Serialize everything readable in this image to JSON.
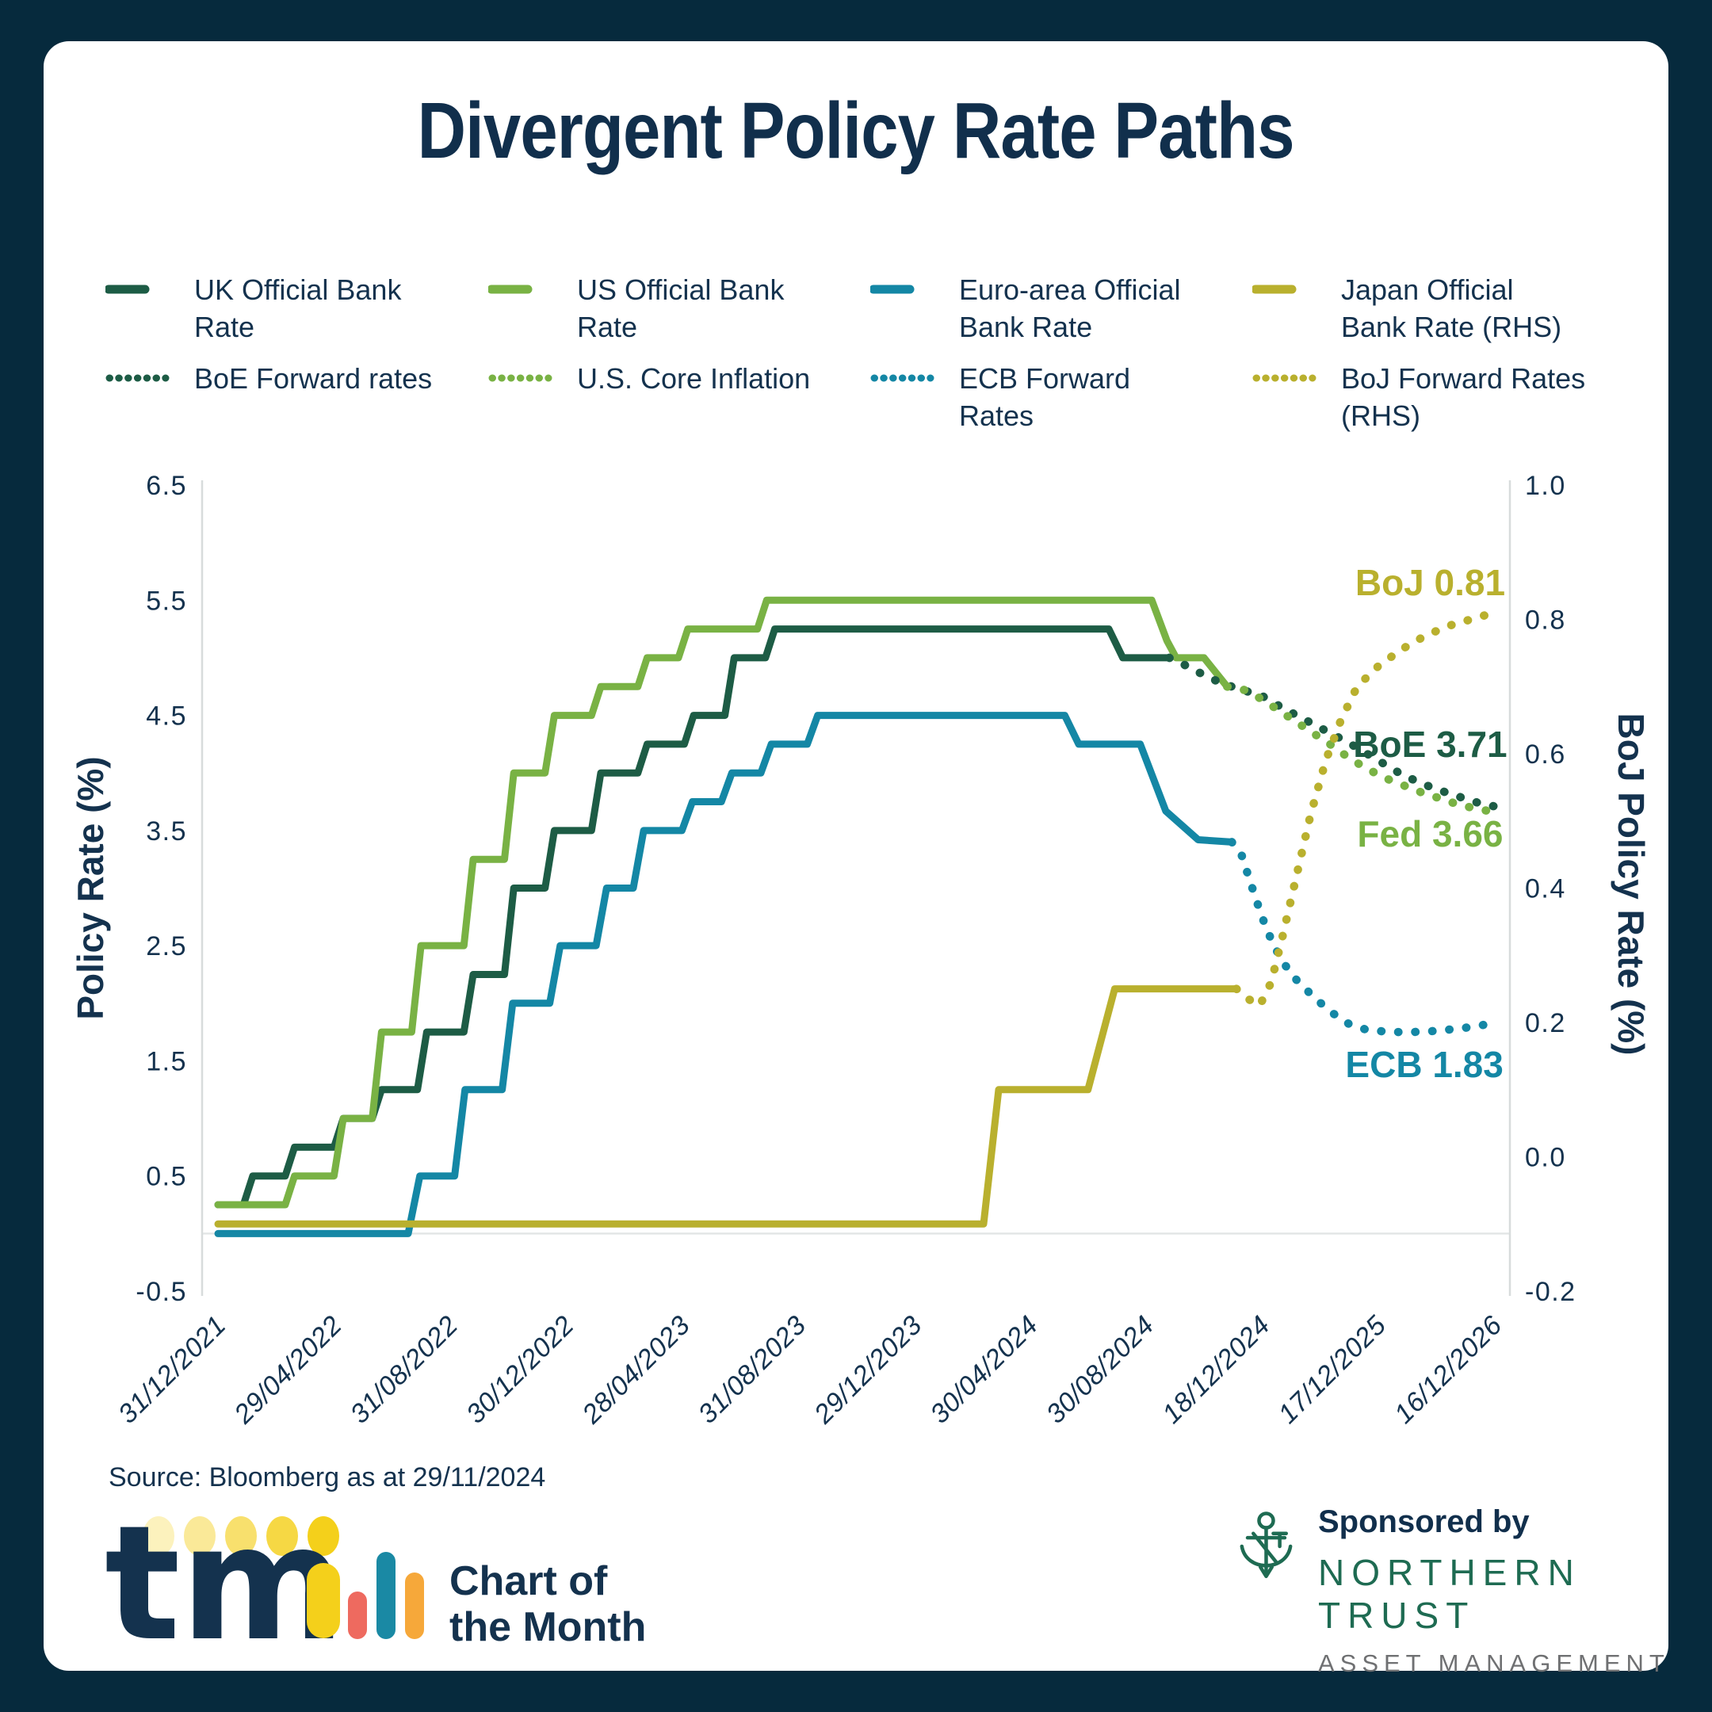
{
  "title": "Divergent Policy Rate Paths",
  "colors": {
    "background": "#062a3d",
    "card": "#ffffff",
    "text_navy": "#14324e",
    "uk_green": "#1d5c45",
    "us_green": "#79b244",
    "euro_teal": "#1487a5",
    "japan_olive": "#b9b02e",
    "nt_green": "#1e6b52",
    "nt_gray": "#6f7072",
    "axis_gray": "#d8dcdc"
  },
  "legend": {
    "items": [
      {
        "lines": [
          "UK Official Bank",
          "Rate"
        ],
        "color": "#1d5c45",
        "style": "solid"
      },
      {
        "lines": [
          "US Official Bank",
          "Rate"
        ],
        "color": "#79b244",
        "style": "solid"
      },
      {
        "lines": [
          "Euro-area Official",
          "Bank Rate"
        ],
        "color": "#1487a5",
        "style": "solid"
      },
      {
        "lines": [
          "Japan Official",
          "Bank Rate (RHS)"
        ],
        "color": "#b9b02e",
        "style": "solid"
      },
      {
        "lines": [
          "BoE Forward rates"
        ],
        "color": "#1d5c45",
        "style": "dotted"
      },
      {
        "lines": [
          "U.S. Core Inflation"
        ],
        "color": "#79b244",
        "style": "dotted"
      },
      {
        "lines": [
          "ECB Forward",
          "Rates"
        ],
        "color": "#1487a5",
        "style": "dotted"
      },
      {
        "lines": [
          "BoJ Forward Rates",
          "(RHS)"
        ],
        "color": "#b9b02e",
        "style": "dotted"
      }
    ]
  },
  "chart_data": {
    "type": "line",
    "title": "Divergent Policy Rate Paths",
    "x_tick_labels": [
      "31/12/2021",
      "29/04/2022",
      "31/08/2022",
      "30/12/2022",
      "28/04/2023",
      "31/08/2023",
      "29/12/2023",
      "30/04/2024",
      "30/08/2024",
      "18/12/2024",
      "17/12/2025",
      "16/12/2026"
    ],
    "y_left": {
      "label": "Policy Rate (%)",
      "min": -0.5,
      "max": 6.5,
      "ticks": [
        "6.5",
        "5.5",
        "4.5",
        "3.5",
        "2.5",
        "1.5",
        "0.5",
        "-0.5"
      ]
    },
    "y_right": {
      "label": "BoJ Policy Rate (%)",
      "min": -0.2,
      "max": 1.0,
      "ticks": [
        "1.0",
        "0.8",
        "0.6",
        "0.4",
        "0.2",
        "0.0",
        "-0.2"
      ]
    },
    "zero_gridline": 0,
    "series": [
      {
        "name": "UK Official Bank Rate",
        "color": "#1d5c45",
        "style": "solid",
        "axis": "left",
        "points": [
          [
            0,
            0.25
          ],
          [
            0.22,
            0.25
          ],
          [
            0.3,
            0.5
          ],
          [
            0.58,
            0.5
          ],
          [
            0.66,
            0.75
          ],
          [
            1.0,
            0.75
          ],
          [
            1.08,
            1.0
          ],
          [
            1.33,
            1.0
          ],
          [
            1.41,
            1.25
          ],
          [
            1.72,
            1.25
          ],
          [
            1.8,
            1.75
          ],
          [
            2.12,
            1.75
          ],
          [
            2.2,
            2.25
          ],
          [
            2.47,
            2.25
          ],
          [
            2.55,
            3.0
          ],
          [
            2.82,
            3.0
          ],
          [
            2.9,
            3.5
          ],
          [
            3.22,
            3.5
          ],
          [
            3.3,
            4.0
          ],
          [
            3.62,
            4.0
          ],
          [
            3.7,
            4.25
          ],
          [
            4.02,
            4.25
          ],
          [
            4.1,
            4.5
          ],
          [
            4.37,
            4.5
          ],
          [
            4.45,
            5.0
          ],
          [
            4.72,
            5.0
          ],
          [
            4.8,
            5.25
          ],
          [
            7.68,
            5.25
          ],
          [
            7.8,
            5.0
          ],
          [
            8.2,
            5.0
          ]
        ]
      },
      {
        "name": "US Official Bank Rate",
        "color": "#79b244",
        "style": "solid",
        "axis": "left",
        "points": [
          [
            0,
            0.25
          ],
          [
            0.58,
            0.25
          ],
          [
            0.66,
            0.5
          ],
          [
            1.0,
            0.5
          ],
          [
            1.08,
            1.0
          ],
          [
            1.33,
            1.0
          ],
          [
            1.41,
            1.75
          ],
          [
            1.67,
            1.75
          ],
          [
            1.75,
            2.5
          ],
          [
            2.12,
            2.5
          ],
          [
            2.2,
            3.25
          ],
          [
            2.47,
            3.25
          ],
          [
            2.55,
            4.0
          ],
          [
            2.82,
            4.0
          ],
          [
            2.9,
            4.5
          ],
          [
            3.22,
            4.5
          ],
          [
            3.3,
            4.75
          ],
          [
            3.62,
            4.75
          ],
          [
            3.7,
            5.0
          ],
          [
            3.97,
            5.0
          ],
          [
            4.05,
            5.25
          ],
          [
            4.65,
            5.25
          ],
          [
            4.73,
            5.5
          ],
          [
            8.05,
            5.5
          ],
          [
            8.18,
            5.15
          ],
          [
            8.26,
            5.0
          ],
          [
            8.5,
            5.0
          ],
          [
            8.7,
            4.75
          ]
        ]
      },
      {
        "name": "Euro-area Official Bank Rate",
        "color": "#1487a5",
        "style": "solid",
        "axis": "left",
        "points": [
          [
            0,
            0.0
          ],
          [
            1.64,
            0.0
          ],
          [
            1.74,
            0.5
          ],
          [
            2.04,
            0.5
          ],
          [
            2.13,
            1.25
          ],
          [
            2.45,
            1.25
          ],
          [
            2.54,
            2.0
          ],
          [
            2.86,
            2.0
          ],
          [
            2.95,
            2.5
          ],
          [
            3.26,
            2.5
          ],
          [
            3.35,
            3.0
          ],
          [
            3.58,
            3.0
          ],
          [
            3.67,
            3.5
          ],
          [
            4.0,
            3.5
          ],
          [
            4.09,
            3.75
          ],
          [
            4.34,
            3.75
          ],
          [
            4.43,
            4.0
          ],
          [
            4.68,
            4.0
          ],
          [
            4.77,
            4.25
          ],
          [
            5.08,
            4.25
          ],
          [
            5.17,
            4.5
          ],
          [
            7.3,
            4.5
          ],
          [
            7.42,
            4.25
          ],
          [
            7.95,
            4.25
          ],
          [
            8.17,
            3.67
          ],
          [
            8.45,
            3.42
          ],
          [
            8.74,
            3.4
          ]
        ]
      },
      {
        "name": "Japan Official Bank Rate (RHS)",
        "color": "#b9b02e",
        "style": "solid",
        "axis": "right",
        "points": [
          [
            0,
            -0.1
          ],
          [
            6.6,
            -0.1
          ],
          [
            6.73,
            0.1
          ],
          [
            7.5,
            0.1
          ],
          [
            7.73,
            0.25
          ],
          [
            8.78,
            0.25
          ]
        ]
      },
      {
        "name": "BoE Forward rates",
        "color": "#1d5c45",
        "style": "dotted",
        "axis": "left",
        "points": [
          [
            8.2,
            5.0
          ],
          [
            8.35,
            4.93
          ],
          [
            8.5,
            4.85
          ],
          [
            8.65,
            4.78
          ],
          [
            8.8,
            4.73
          ],
          [
            9.0,
            4.67
          ],
          [
            9.15,
            4.58
          ],
          [
            9.3,
            4.5
          ],
          [
            9.45,
            4.42
          ],
          [
            9.6,
            4.34
          ],
          [
            9.75,
            4.26
          ],
          [
            9.9,
            4.17
          ],
          [
            10.05,
            4.08
          ],
          [
            10.2,
            3.99
          ],
          [
            10.35,
            3.92
          ],
          [
            10.5,
            3.86
          ],
          [
            10.65,
            3.81
          ],
          [
            10.8,
            3.76
          ],
          [
            10.9,
            3.73
          ],
          [
            11,
            3.71
          ]
        ]
      },
      {
        "name": "U.S. Core Inflation",
        "color": "#79b244",
        "style": "dotted",
        "axis": "left",
        "points": [
          [
            8.7,
            4.75
          ],
          [
            8.85,
            4.72
          ],
          [
            9.0,
            4.64
          ],
          [
            9.15,
            4.54
          ],
          [
            9.3,
            4.44
          ],
          [
            9.45,
            4.34
          ],
          [
            9.6,
            4.24
          ],
          [
            9.75,
            4.13
          ],
          [
            9.9,
            4.04
          ],
          [
            10.05,
            3.96
          ],
          [
            10.2,
            3.9
          ],
          [
            10.35,
            3.84
          ],
          [
            10.5,
            3.79
          ],
          [
            10.65,
            3.74
          ],
          [
            10.8,
            3.7
          ],
          [
            10.9,
            3.68
          ],
          [
            11,
            3.66
          ]
        ]
      },
      {
        "name": "ECB Forward Rates",
        "color": "#1487a5",
        "style": "dotted",
        "axis": "left",
        "points": [
          [
            8.74,
            3.4
          ],
          [
            8.82,
            3.3
          ],
          [
            8.9,
            3.05
          ],
          [
            9.0,
            2.75
          ],
          [
            9.1,
            2.5
          ],
          [
            9.2,
            2.33
          ],
          [
            9.3,
            2.2
          ],
          [
            9.45,
            2.05
          ],
          [
            9.6,
            1.92
          ],
          [
            9.75,
            1.82
          ],
          [
            9.9,
            1.77
          ],
          [
            10.1,
            1.75
          ],
          [
            10.3,
            1.75
          ],
          [
            10.5,
            1.76
          ],
          [
            10.7,
            1.78
          ],
          [
            10.85,
            1.8
          ],
          [
            11,
            1.83
          ]
        ]
      },
      {
        "name": "BoJ Forward Rates (RHS)",
        "color": "#b9b02e",
        "style": "dotted",
        "axis": "right",
        "points": [
          [
            8.78,
            0.25
          ],
          [
            8.88,
            0.235
          ],
          [
            8.98,
            0.225
          ],
          [
            9.08,
            0.26
          ],
          [
            9.18,
            0.33
          ],
          [
            9.3,
            0.42
          ],
          [
            9.42,
            0.51
          ],
          [
            9.55,
            0.59
          ],
          [
            9.68,
            0.65
          ],
          [
            9.82,
            0.7
          ],
          [
            10.0,
            0.73
          ],
          [
            10.2,
            0.755
          ],
          [
            10.4,
            0.775
          ],
          [
            10.6,
            0.79
          ],
          [
            10.8,
            0.8
          ],
          [
            11,
            0.81
          ]
        ]
      }
    ],
    "annotations": [
      {
        "text": "BoJ 0.81",
        "color": "#b9b02e",
        "axis": "right",
        "t": 10.45,
        "v": 0.855
      },
      {
        "text": "BoE 3.71",
        "color": "#1d5c45",
        "axis": "left",
        "t": 10.45,
        "v": 4.25
      },
      {
        "text": "Fed 3.66",
        "color": "#79b244",
        "axis": "left",
        "t": 10.45,
        "v": 3.47
      },
      {
        "text": "ECB 1.83",
        "color": "#1487a5",
        "axis": "left",
        "t": 10.4,
        "v": 1.47
      }
    ]
  },
  "source": "Source: Bloomberg as at 29/11/2024",
  "footer": {
    "tmi_tm": "tm",
    "tmi_i": "i",
    "chart_of_line1": "Chart of",
    "chart_of_line2": "the Month",
    "sponsored_by": "Sponsored by",
    "northern_trust": "NORTHERN TRUST",
    "asset_management": "ASSET MANAGEMENT"
  }
}
